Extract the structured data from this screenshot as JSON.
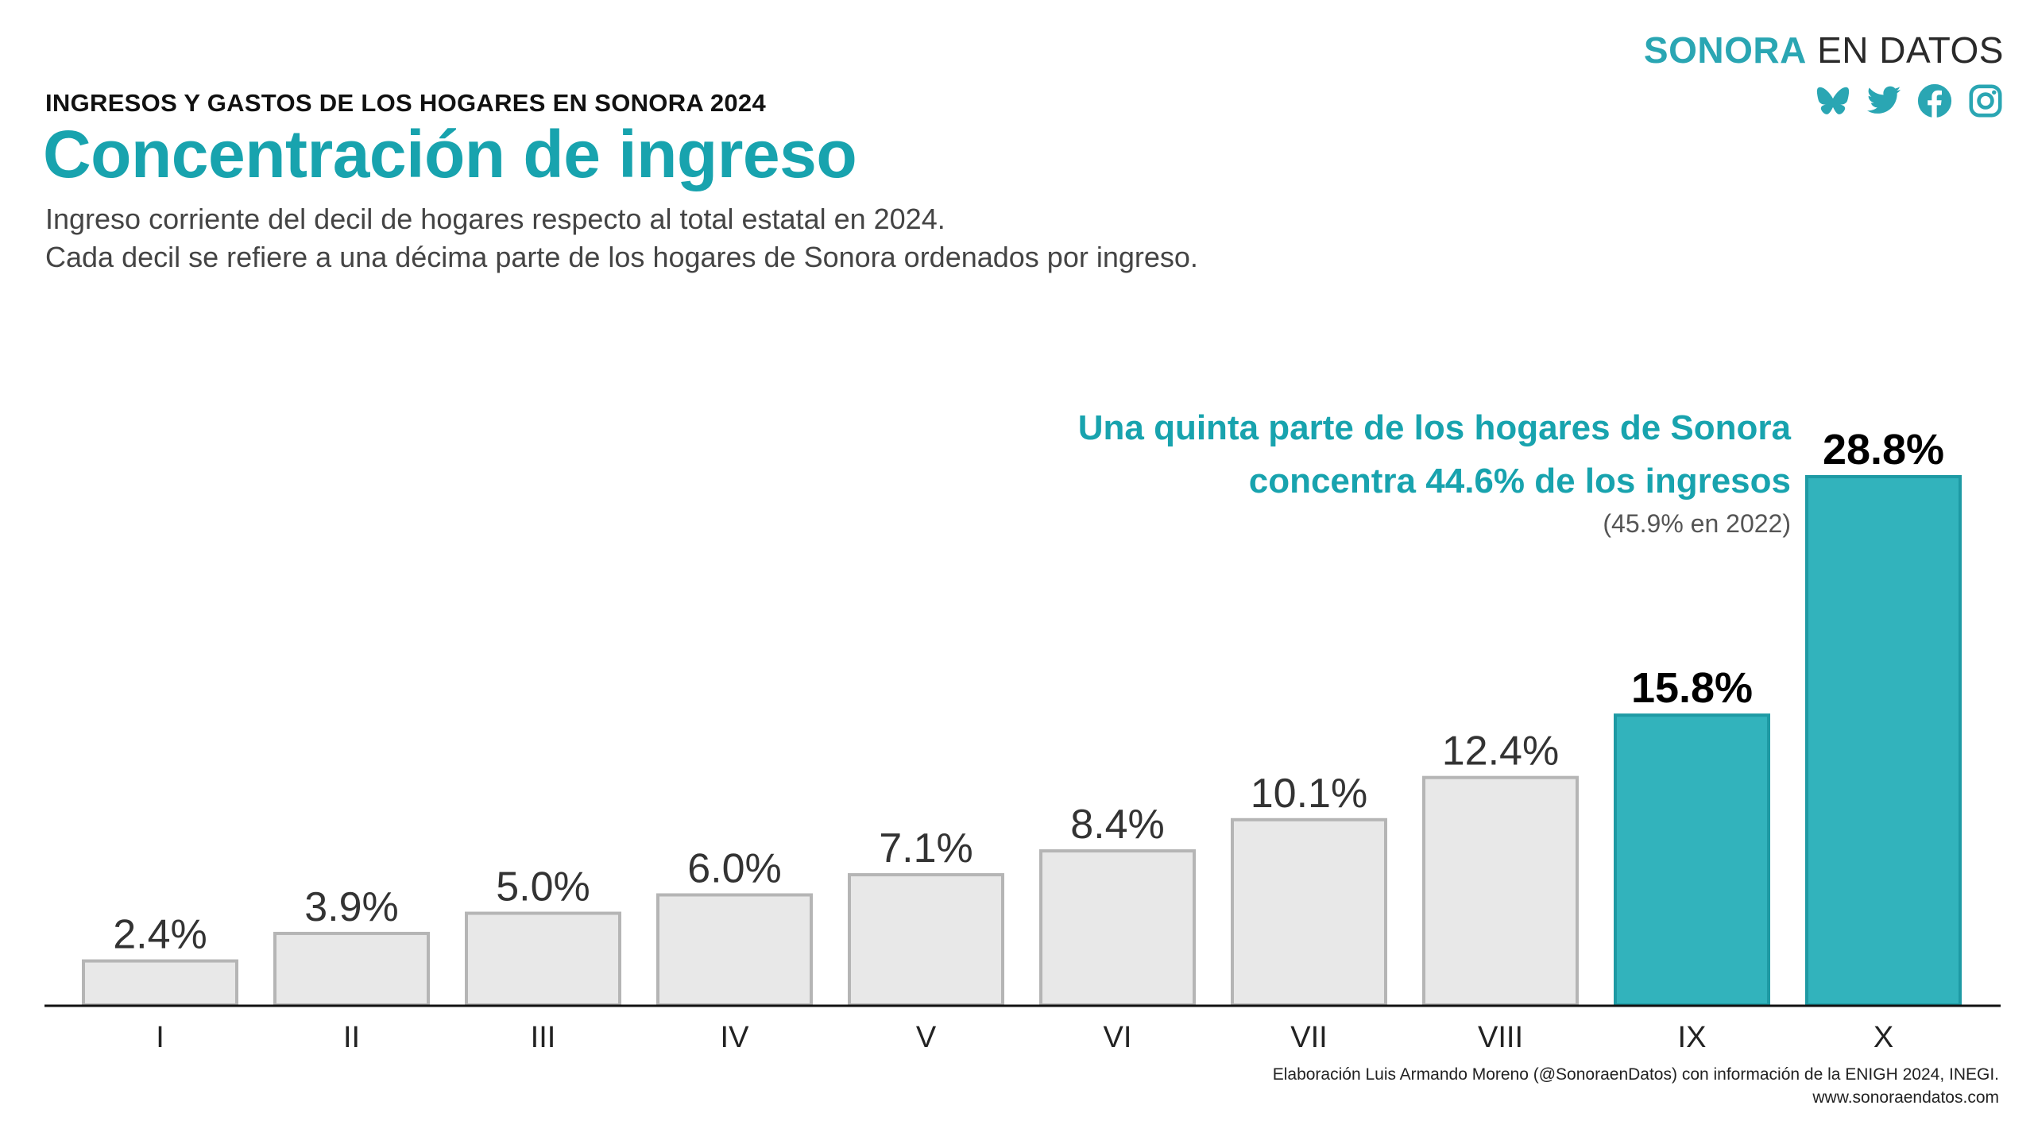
{
  "brand": {
    "part1": "SONORA",
    "part2": "EN DATOS",
    "accent": "#2aa6b3"
  },
  "social_icons": [
    "butterfly-icon",
    "twitter-icon",
    "facebook-icon",
    "instagram-icon"
  ],
  "header": {
    "kicker": "INGRESOS Y GASTOS DE LOS HOGARES EN SONORA 2024",
    "title": "Concentración de ingreso",
    "subtitle_line1": "Ingreso corriente del decil de hogares respecto al total estatal en 2024.",
    "subtitle_line2": "Cada decil se refiere a una décima parte de los hogares de Sonora ordenados por ingreso."
  },
  "chart_data": {
    "type": "bar",
    "categories": [
      "I",
      "II",
      "III",
      "IV",
      "V",
      "VI",
      "VII",
      "VIII",
      "IX",
      "X"
    ],
    "values": [
      2.4,
      3.9,
      5.0,
      6.0,
      7.1,
      8.4,
      10.1,
      12.4,
      15.8,
      28.8
    ],
    "labels": [
      "2.4%",
      "3.9%",
      "5.0%",
      "6.0%",
      "7.1%",
      "8.4%",
      "10.1%",
      "12.4%",
      "15.8%",
      "28.8%"
    ],
    "highlighted": [
      "IX",
      "X"
    ],
    "colors": {
      "default_fill": "#e8e8e8",
      "default_stroke": "#b5b5b5",
      "highlight_fill": "#32b3bc",
      "highlight_stroke": "#1e9aa4"
    },
    "ylim": [
      0,
      28.8
    ],
    "grid": false,
    "annotation": {
      "line1": "Una quinta parte de los hogares de Sonora",
      "line2": "concentra 44.6% de los ingresos",
      "note": "(45.9% en 2022)"
    }
  },
  "footer": {
    "credit": "Elaboración Luis Armando Moreno (@SonoraenDatos) con información de la ENIGH 2024, INEGI.",
    "url": "www.sonoraendatos.com"
  }
}
